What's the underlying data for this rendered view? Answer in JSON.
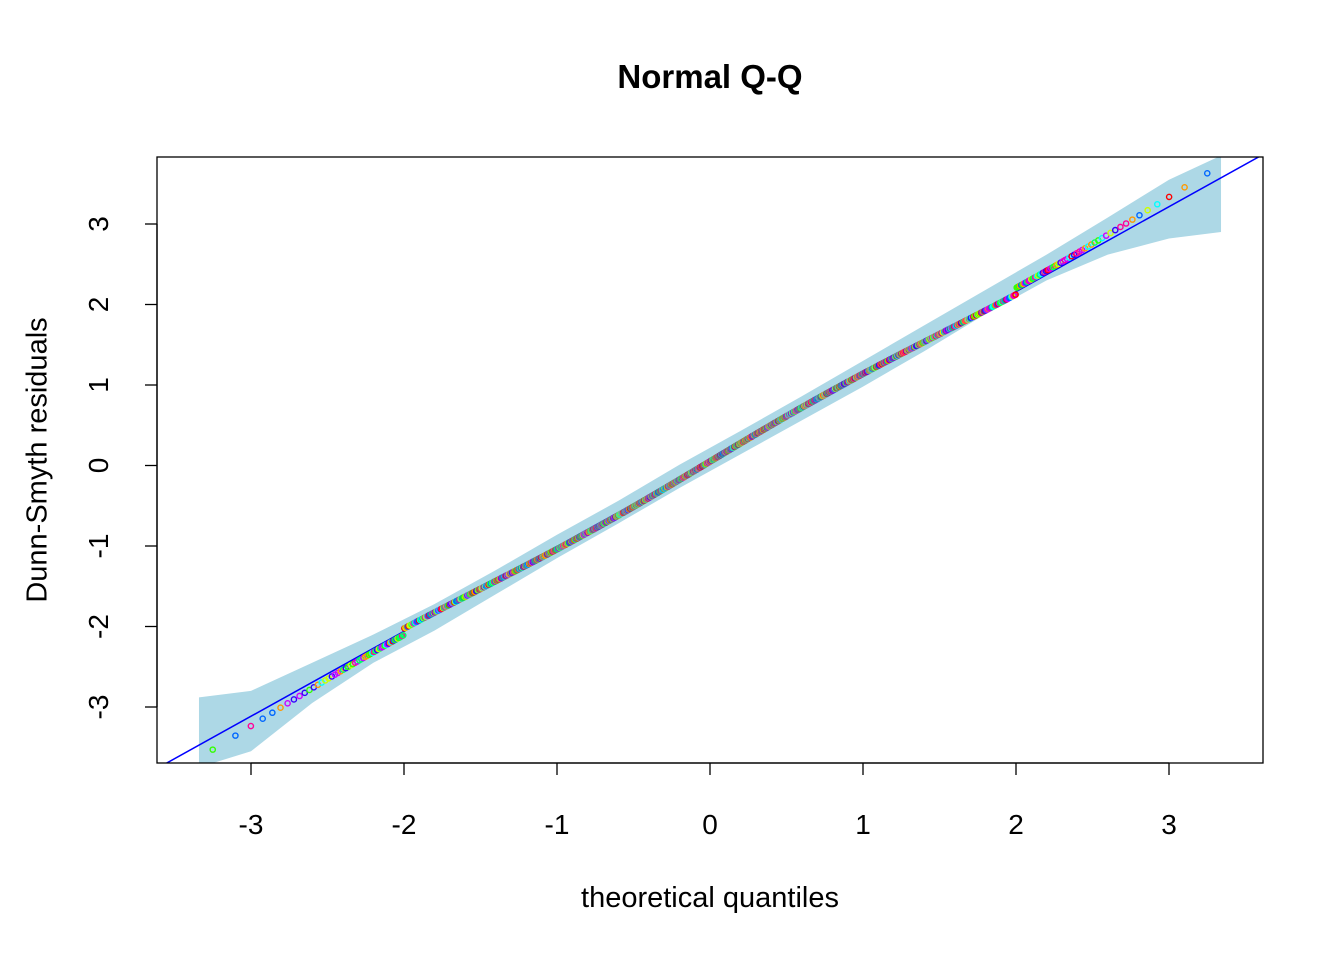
{
  "chart_data": {
    "type": "scatter",
    "title": "Normal Q-Q",
    "xlabel": "theoretical quantiles",
    "ylabel": "Dunn-Smyth residuals",
    "xlim": [
      -3.6,
      3.6
    ],
    "ylim": [
      -3.7,
      3.8
    ],
    "x_ticks": [
      -3,
      -2,
      -1,
      0,
      1,
      2,
      3
    ],
    "x_tick_labels": [
      "-3",
      "-2",
      "-1",
      "0",
      "1",
      "2",
      "3"
    ],
    "y_ticks": [
      -3,
      -2,
      -1,
      0,
      1,
      2,
      3
    ],
    "y_tick_labels": [
      "-3",
      "-2",
      "-1",
      "0",
      "1",
      "2",
      "3"
    ],
    "reference_line": {
      "intercept": 0.05,
      "slope": 1.055,
      "color": "#0000ff"
    },
    "envelope_color": "#add8e6",
    "envelope": {
      "x": [
        -3.34,
        -3.0,
        -2.6,
        -2.2,
        -1.8,
        -1.4,
        -1.0,
        -0.6,
        -0.2,
        0.2,
        0.6,
        1.0,
        1.4,
        1.8,
        2.2,
        2.6,
        3.0,
        3.34
      ],
      "lower": [
        -3.75,
        -3.55,
        -2.95,
        -2.45,
        -2.05,
        -1.6,
        -1.15,
        -0.72,
        -0.28,
        0.14,
        0.56,
        0.98,
        1.42,
        1.88,
        2.3,
        2.62,
        2.82,
        2.9
      ],
      "upper": [
        -2.88,
        -2.8,
        -2.45,
        -2.1,
        -1.72,
        -1.3,
        -0.86,
        -0.44,
        0.01,
        0.43,
        0.86,
        1.3,
        1.74,
        2.18,
        2.62,
        3.08,
        3.55,
        3.85
      ]
    },
    "point_colors": [
      "#ff0000",
      "#ff9900",
      "#ccff00",
      "#33ff00",
      "#00ff66",
      "#00ffff",
      "#0066ff",
      "#3300ff",
      "#cc00ff",
      "#ff0099"
    ],
    "grid": false,
    "legend": "none"
  }
}
